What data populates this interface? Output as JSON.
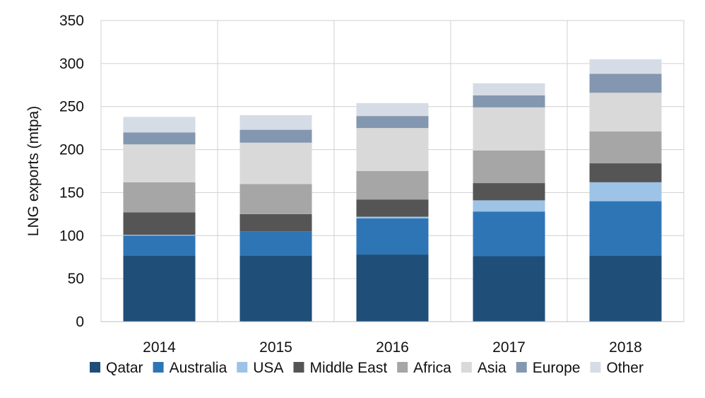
{
  "chart_data": {
    "type": "bar",
    "stacked": true,
    "title": "",
    "xlabel": "",
    "ylabel": "LNG exports (mtpa)",
    "ylim": [
      0,
      350
    ],
    "yticks": [
      0,
      50,
      100,
      150,
      200,
      250,
      300,
      350
    ],
    "grid": true,
    "legend_position": "bottom",
    "categories": [
      "2014",
      "2015",
      "2016",
      "2017",
      "2018"
    ],
    "series": [
      {
        "name": "Qatar",
        "color": "#1f4e79",
        "values": [
          77,
          77,
          78,
          76,
          77
        ]
      },
      {
        "name": "Australia",
        "color": "#2e75b6",
        "values": [
          23,
          28,
          42,
          52,
          63
        ]
      },
      {
        "name": "USA",
        "color": "#9dc3e6",
        "values": [
          1,
          0,
          2,
          13,
          22
        ]
      },
      {
        "name": "Middle East",
        "color": "#555555",
        "values": [
          26,
          20,
          20,
          20,
          22
        ]
      },
      {
        "name": "Africa",
        "color": "#a6a6a6",
        "values": [
          35,
          35,
          33,
          38,
          37
        ]
      },
      {
        "name": "Asia",
        "color": "#d9d9d9",
        "values": [
          44,
          48,
          50,
          50,
          45
        ]
      },
      {
        "name": "Europe",
        "color": "#8497b0",
        "values": [
          14,
          15,
          14,
          14,
          22
        ]
      },
      {
        "name": "Other",
        "color": "#d6dce5",
        "values": [
          18,
          17,
          15,
          14,
          17
        ]
      }
    ]
  }
}
